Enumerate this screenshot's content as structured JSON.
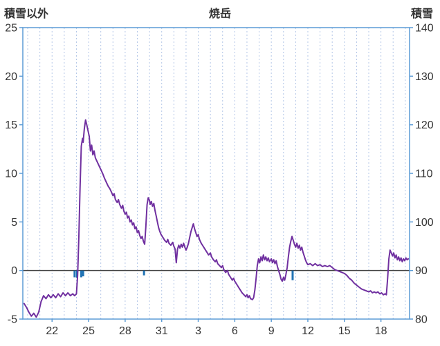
{
  "header": {
    "left_axis_title": "積雪以外",
    "chart_title": "焼岳",
    "right_axis_title": "積雪"
  },
  "chart_data": {
    "type": "line",
    "title": "焼岳",
    "left_axis": {
      "title": "積雪以外",
      "min": -5,
      "max": 25,
      "ticks": [
        25,
        20,
        15,
        10,
        5,
        0,
        -5
      ]
    },
    "right_axis": {
      "title": "積雪",
      "min": 80,
      "max": 140,
      "ticks": [
        140,
        130,
        120,
        110,
        100,
        90,
        80
      ]
    },
    "x_axis": {
      "min": 19.6,
      "max": 51.35,
      "grid_step": 1,
      "tick_days": [
        22,
        25,
        28,
        31,
        34,
        37,
        40,
        43,
        46,
        49
      ],
      "tick_labels": [
        "22",
        "25",
        "28",
        "31",
        "3",
        "6",
        "9",
        "12",
        "15",
        "18"
      ]
    },
    "zero_line_value": 0,
    "colors": {
      "frame": "#5b9bd5",
      "grid": "#b3c6e7",
      "zero_line": "#3f3f3f",
      "line": "#7030a0",
      "bars": "#2274b5",
      "text": "#333333"
    },
    "bar_series": {
      "name": "event-bars",
      "color": "#2274b5",
      "bars": [
        {
          "day": 23.85,
          "value": -0.7
        },
        {
          "day": 24.05,
          "value": -0.75
        },
        {
          "day": 24.4,
          "value": -0.7
        },
        {
          "day": 24.55,
          "value": -0.6
        },
        {
          "day": 29.55,
          "value": -0.5
        },
        {
          "day": 41.75,
          "value": -1.0
        }
      ]
    },
    "line_series": {
      "name": "temperature-line",
      "color": "#7030a0",
      "points": [
        [
          19.7,
          -3.4
        ],
        [
          19.9,
          -3.8
        ],
        [
          20.1,
          -4.3
        ],
        [
          20.3,
          -4.7
        ],
        [
          20.5,
          -4.4
        ],
        [
          20.7,
          -4.8
        ],
        [
          20.9,
          -4.3
        ],
        [
          21.1,
          -3.2
        ],
        [
          21.3,
          -2.6
        ],
        [
          21.5,
          -2.9
        ],
        [
          21.7,
          -2.5
        ],
        [
          21.9,
          -2.8
        ],
        [
          22.1,
          -2.5
        ],
        [
          22.3,
          -2.8
        ],
        [
          22.5,
          -2.4
        ],
        [
          22.7,
          -2.7
        ],
        [
          22.9,
          -2.3
        ],
        [
          23.1,
          -2.6
        ],
        [
          23.3,
          -2.3
        ],
        [
          23.5,
          -2.6
        ],
        [
          23.7,
          -2.4
        ],
        [
          23.85,
          -2.6
        ],
        [
          24.0,
          -2.4
        ],
        [
          24.1,
          -0.5
        ],
        [
          24.2,
          3.5
        ],
        [
          24.3,
          8.5
        ],
        [
          24.4,
          12.8
        ],
        [
          24.5,
          13.6
        ],
        [
          24.55,
          13.2
        ],
        [
          24.65,
          14.6
        ],
        [
          24.75,
          15.5
        ],
        [
          24.85,
          15.0
        ],
        [
          24.95,
          14.4
        ],
        [
          25.05,
          13.8
        ],
        [
          25.15,
          12.3
        ],
        [
          25.25,
          12.9
        ],
        [
          25.35,
          11.9
        ],
        [
          25.45,
          12.3
        ],
        [
          25.55,
          11.6
        ],
        [
          25.7,
          11.2
        ],
        [
          25.85,
          10.8
        ],
        [
          26.0,
          10.4
        ],
        [
          26.15,
          10.0
        ],
        [
          26.3,
          9.5
        ],
        [
          26.45,
          9.1
        ],
        [
          26.6,
          8.7
        ],
        [
          26.75,
          8.4
        ],
        [
          26.9,
          8.0
        ],
        [
          27.0,
          7.7
        ],
        [
          27.1,
          7.9
        ],
        [
          27.2,
          7.3
        ],
        [
          27.35,
          7.0
        ],
        [
          27.45,
          7.3
        ],
        [
          27.55,
          6.8
        ],
        [
          27.7,
          6.4
        ],
        [
          27.8,
          6.7
        ],
        [
          27.9,
          6.1
        ],
        [
          28.0,
          5.8
        ],
        [
          28.1,
          6.0
        ],
        [
          28.2,
          5.4
        ],
        [
          28.3,
          5.6
        ],
        [
          28.4,
          5.0
        ],
        [
          28.5,
          5.2
        ],
        [
          28.6,
          4.7
        ],
        [
          28.7,
          4.9
        ],
        [
          28.8,
          4.3
        ],
        [
          28.9,
          4.5
        ],
        [
          29.0,
          3.9
        ],
        [
          29.1,
          4.1
        ],
        [
          29.2,
          3.6
        ],
        [
          29.3,
          3.3
        ],
        [
          29.4,
          3.5
        ],
        [
          29.5,
          3.0
        ],
        [
          29.6,
          2.7
        ],
        [
          29.7,
          4.5
        ],
        [
          29.8,
          6.8
        ],
        [
          29.9,
          7.5
        ],
        [
          30.0,
          7.2
        ],
        [
          30.05,
          6.8
        ],
        [
          30.15,
          7.1
        ],
        [
          30.25,
          6.6
        ],
        [
          30.35,
          6.9
        ],
        [
          30.45,
          6.2
        ],
        [
          30.55,
          5.6
        ],
        [
          30.65,
          5.0
        ],
        [
          30.75,
          4.4
        ],
        [
          30.85,
          4.0
        ],
        [
          30.95,
          3.7
        ],
        [
          31.1,
          3.4
        ],
        [
          31.25,
          3.1
        ],
        [
          31.4,
          2.9
        ],
        [
          31.5,
          3.2
        ],
        [
          31.6,
          2.8
        ],
        [
          31.75,
          2.6
        ],
        [
          31.9,
          2.9
        ],
        [
          32.0,
          2.5
        ],
        [
          32.1,
          2.2
        ],
        [
          32.2,
          0.8
        ],
        [
          32.3,
          2.2
        ],
        [
          32.4,
          2.6
        ],
        [
          32.5,
          2.3
        ],
        [
          32.6,
          2.7
        ],
        [
          32.7,
          2.4
        ],
        [
          32.8,
          2.8
        ],
        [
          32.9,
          2.4
        ],
        [
          33.0,
          2.1
        ],
        [
          33.1,
          2.4
        ],
        [
          33.2,
          2.8
        ],
        [
          33.3,
          3.4
        ],
        [
          33.4,
          4.0
        ],
        [
          33.5,
          4.4
        ],
        [
          33.6,
          4.8
        ],
        [
          33.7,
          4.3
        ],
        [
          33.8,
          3.9
        ],
        [
          33.9,
          3.5
        ],
        [
          34.0,
          3.7
        ],
        [
          34.1,
          3.2
        ],
        [
          34.25,
          2.8
        ],
        [
          34.4,
          2.5
        ],
        [
          34.55,
          2.2
        ],
        [
          34.7,
          1.9
        ],
        [
          34.85,
          1.6
        ],
        [
          35.0,
          1.8
        ],
        [
          35.1,
          1.4
        ],
        [
          35.25,
          1.1
        ],
        [
          35.4,
          0.9
        ],
        [
          35.5,
          1.1
        ],
        [
          35.6,
          0.7
        ],
        [
          35.75,
          0.5
        ],
        [
          35.9,
          0.3
        ],
        [
          36.0,
          0.5
        ],
        [
          36.1,
          0.1
        ],
        [
          36.25,
          -0.2
        ],
        [
          36.4,
          0.0
        ],
        [
          36.5,
          -0.4
        ],
        [
          36.65,
          -0.7
        ],
        [
          36.8,
          -1.0
        ],
        [
          36.9,
          -0.8
        ],
        [
          37.0,
          -1.1
        ],
        [
          37.15,
          -1.4
        ],
        [
          37.3,
          -1.7
        ],
        [
          37.45,
          -2.0
        ],
        [
          37.6,
          -2.3
        ],
        [
          37.75,
          -2.5
        ],
        [
          37.9,
          -2.7
        ],
        [
          38.0,
          -2.5
        ],
        [
          38.1,
          -2.8
        ],
        [
          38.2,
          -2.6
        ],
        [
          38.3,
          -2.9
        ],
        [
          38.45,
          -3.0
        ],
        [
          38.55,
          -2.8
        ],
        [
          38.65,
          -2.0
        ],
        [
          38.75,
          -0.8
        ],
        [
          38.85,
          0.5
        ],
        [
          38.95,
          1.2
        ],
        [
          39.05,
          0.8
        ],
        [
          39.15,
          1.4
        ],
        [
          39.25,
          1.0
        ],
        [
          39.35,
          1.6
        ],
        [
          39.45,
          1.1
        ],
        [
          39.55,
          1.4
        ],
        [
          39.65,
          1.0
        ],
        [
          39.75,
          1.3
        ],
        [
          39.85,
          0.9
        ],
        [
          40.0,
          1.2
        ],
        [
          40.1,
          0.8
        ],
        [
          40.2,
          1.1
        ],
        [
          40.3,
          0.7
        ],
        [
          40.4,
          1.0
        ],
        [
          40.5,
          0.4
        ],
        [
          40.6,
          0.0
        ],
        [
          40.7,
          -0.4
        ],
        [
          40.8,
          -0.9
        ],
        [
          40.9,
          -1.1
        ],
        [
          41.0,
          -0.7
        ],
        [
          41.1,
          -1.0
        ],
        [
          41.2,
          -0.4
        ],
        [
          41.3,
          0.3
        ],
        [
          41.4,
          1.4
        ],
        [
          41.5,
          2.4
        ],
        [
          41.6,
          3.0
        ],
        [
          41.7,
          3.5
        ],
        [
          41.8,
          3.1
        ],
        [
          41.9,
          2.7
        ],
        [
          42.0,
          2.4
        ],
        [
          42.1,
          2.8
        ],
        [
          42.2,
          2.3
        ],
        [
          42.3,
          2.6
        ],
        [
          42.4,
          2.1
        ],
        [
          42.5,
          2.4
        ],
        [
          42.6,
          1.9
        ],
        [
          42.7,
          1.5
        ],
        [
          42.8,
          1.1
        ],
        [
          42.9,
          0.8
        ],
        [
          43.0,
          0.6
        ],
        [
          43.2,
          0.7
        ],
        [
          43.4,
          0.5
        ],
        [
          43.6,
          0.7
        ],
        [
          43.8,
          0.5
        ],
        [
          44.0,
          0.6
        ],
        [
          44.2,
          0.4
        ],
        [
          44.4,
          0.5
        ],
        [
          44.6,
          0.4
        ],
        [
          44.8,
          0.5
        ],
        [
          45.0,
          0.3
        ],
        [
          45.2,
          0.1
        ],
        [
          45.4,
          0.0
        ],
        [
          45.6,
          -0.1
        ],
        [
          45.8,
          -0.2
        ],
        [
          46.0,
          -0.3
        ],
        [
          46.2,
          -0.5
        ],
        [
          46.4,
          -0.8
        ],
        [
          46.6,
          -1.0
        ],
        [
          46.8,
          -1.3
        ],
        [
          47.0,
          -1.5
        ],
        [
          47.2,
          -1.7
        ],
        [
          47.4,
          -1.9
        ],
        [
          47.6,
          -2.0
        ],
        [
          47.8,
          -2.1
        ],
        [
          48.0,
          -2.2
        ],
        [
          48.15,
          -2.1
        ],
        [
          48.3,
          -2.3
        ],
        [
          48.45,
          -2.2
        ],
        [
          48.6,
          -2.3
        ],
        [
          48.75,
          -2.2
        ],
        [
          48.9,
          -2.4
        ],
        [
          49.05,
          -2.3
        ],
        [
          49.2,
          -2.5
        ],
        [
          49.35,
          -2.4
        ],
        [
          49.45,
          -2.5
        ],
        [
          49.55,
          -0.8
        ],
        [
          49.65,
          1.2
        ],
        [
          49.75,
          2.1
        ],
        [
          49.85,
          1.8
        ],
        [
          49.95,
          1.5
        ],
        [
          50.05,
          1.8
        ],
        [
          50.15,
          1.3
        ],
        [
          50.25,
          1.6
        ],
        [
          50.35,
          1.1
        ],
        [
          50.45,
          1.4
        ],
        [
          50.55,
          1.0
        ],
        [
          50.65,
          1.3
        ],
        [
          50.75,
          0.9
        ],
        [
          50.85,
          1.2
        ],
        [
          50.95,
          1.0
        ],
        [
          51.05,
          1.3
        ],
        [
          51.15,
          1.1
        ],
        [
          51.25,
          1.2
        ]
      ]
    }
  }
}
